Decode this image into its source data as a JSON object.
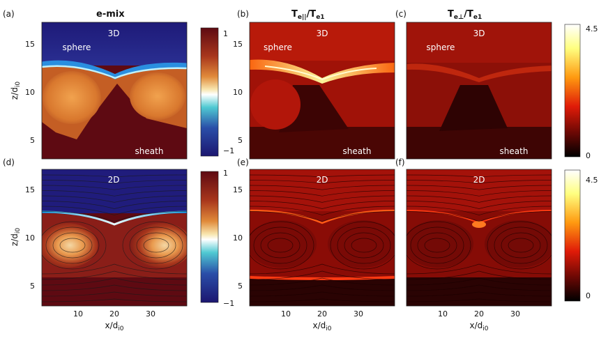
{
  "chart_data": [
    {
      "type": "heatmap",
      "panel": "(a)",
      "title": "e-mix",
      "run": "3D",
      "quantity": "e-mix",
      "regions": [
        "sphere",
        "sheath"
      ],
      "ylabel": "z/d_i0",
      "yticks": [
        5,
        10,
        15
      ],
      "ylim": [
        3,
        17.5
      ],
      "xlim": [
        0,
        40
      ],
      "colorbar": {
        "min": -1,
        "max": 1,
        "tick_labels": [
          "1",
          "−1"
        ]
      },
      "palette": "dark-blue / cyan / pale-yellow / orange / dark-red"
    },
    {
      "type": "heatmap",
      "panel": "(b)",
      "title": "T_e||/T_e1",
      "run": "3D",
      "quantity": "Te_parallel/Te1",
      "regions": [
        "sphere",
        "sheath"
      ],
      "yticks": [
        5,
        10,
        15
      ],
      "ylim": [
        3,
        17.5
      ],
      "xlim": [
        0,
        40
      ]
    },
    {
      "type": "heatmap",
      "panel": "(c)",
      "title": "T_e⊥/T_e1",
      "run": "3D",
      "quantity": "Te_perp/Te1",
      "regions": [
        "sphere",
        "sheath"
      ],
      "xlim": [
        0,
        40
      ],
      "ylim": [
        3,
        17.5
      ],
      "colorbar": {
        "min": 0,
        "max": 4.5,
        "tick_labels": [
          "4.5",
          "0"
        ]
      },
      "palette": "black / red / yellow / white"
    },
    {
      "type": "heatmap",
      "panel": "(d)",
      "run": "2D",
      "quantity": "e-mix",
      "ylabel": "z/d_i0",
      "yticks": [
        5,
        10,
        15
      ],
      "xlabel": "x/d_i0",
      "xticks": [
        10,
        20,
        30
      ],
      "xlim": [
        0,
        40
      ],
      "ylim": [
        3,
        17.5
      ],
      "colorbar": {
        "min": -1,
        "max": 1,
        "tick_labels": [
          "1",
          "−1"
        ]
      },
      "overlay": "magnetic field lines"
    },
    {
      "type": "heatmap",
      "panel": "(e)",
      "run": "2D",
      "quantity": "Te_parallel/Te1",
      "yticks": [
        5,
        10,
        15
      ],
      "xlabel": "x/d_i0",
      "xticks": [
        10,
        20,
        30
      ],
      "xlim": [
        0,
        40
      ],
      "ylim": [
        3,
        17.5
      ],
      "overlay": "magnetic field lines"
    },
    {
      "type": "heatmap",
      "panel": "(f)",
      "run": "2D",
      "quantity": "Te_perp/Te1",
      "xlabel": "x/d_i0",
      "xticks": [
        10,
        20,
        30
      ],
      "xlim": [
        0,
        40
      ],
      "ylim": [
        3,
        17.5
      ],
      "colorbar": {
        "min": 0,
        "max": 4.5,
        "tick_labels": [
          "4.5",
          "0"
        ]
      },
      "overlay": "magnetic field lines"
    }
  ]
}
